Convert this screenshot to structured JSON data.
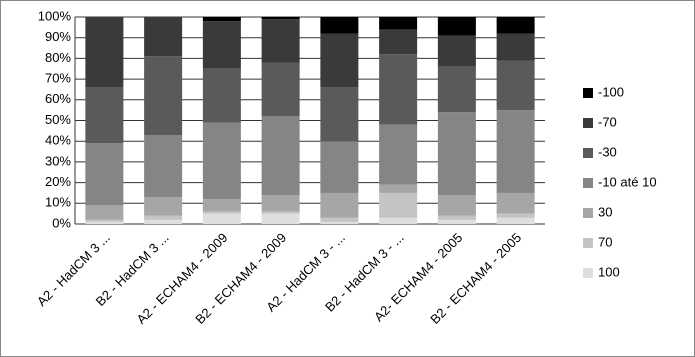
{
  "chart_data": {
    "type": "stacked_bar_100",
    "categories": [
      "A2 - HadCM 3 ...",
      "B2 - HadCM 3 ...",
      "A2 - ECHAM4 - 2009",
      "B2 - ECHAM4 - 2009",
      "A2 - HadCM 3  - ...",
      "B2 - HadCM 3  - ...",
      "A2- ECHAM4 - 2005",
      "B2 - ECHAM4 - 2005"
    ],
    "series": [
      {
        "name": "100",
        "color": "#dedede",
        "values": [
          1,
          2,
          5,
          5,
          1,
          3,
          2,
          3
        ]
      },
      {
        "name": "70",
        "color": "#c4c4c4",
        "values": [
          1,
          2,
          1,
          1,
          2,
          12,
          2,
          2
        ]
      },
      {
        "name": "30",
        "color": "#a6a6a6",
        "values": [
          7,
          9,
          6,
          8,
          12,
          4,
          10,
          10
        ]
      },
      {
        "name": "-10 até 10",
        "color": "#858585",
        "values": [
          30,
          30,
          37,
          38,
          25,
          29,
          40,
          40
        ]
      },
      {
        "name": "-30",
        "color": "#5a5a5a",
        "values": [
          27,
          38,
          26,
          26,
          26,
          34,
          22,
          24
        ]
      },
      {
        "name": "-70",
        "color": "#3a3a3a",
        "values": [
          34,
          19,
          23,
          21,
          26,
          12,
          15,
          13
        ]
      },
      {
        "name": "-100",
        "color": "#000000",
        "values": [
          0,
          0,
          2,
          1,
          8,
          6,
          9,
          8
        ]
      }
    ],
    "ylim": [
      0,
      100
    ],
    "yticks": [
      {
        "value": 0,
        "label": "0%"
      },
      {
        "value": 10,
        "label": "10%"
      },
      {
        "value": 20,
        "label": "20%"
      },
      {
        "value": 30,
        "label": "30%"
      },
      {
        "value": 40,
        "label": "40%"
      },
      {
        "value": 50,
        "label": "50%"
      },
      {
        "value": 60,
        "label": "60%"
      },
      {
        "value": 70,
        "label": "70%"
      },
      {
        "value": 80,
        "label": "80%"
      },
      {
        "value": 90,
        "label": "90%"
      },
      {
        "value": 100,
        "label": "100%"
      }
    ],
    "grid": true,
    "legend": "right"
  }
}
